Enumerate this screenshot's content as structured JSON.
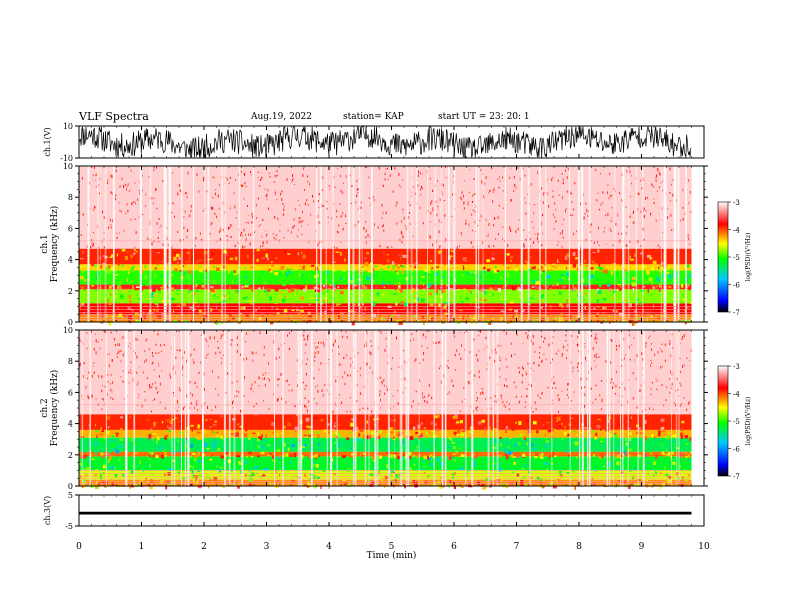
{
  "header": {
    "title": "VLF Spectra",
    "date": "Aug.19, 2022",
    "station": "station= KAP",
    "start": "start  UT  =   23: 20: 1"
  },
  "chart_data": [
    {
      "type": "line",
      "panel": "ch1-waveform",
      "ylabel": "ch.1(V)",
      "ylim": [
        -10,
        10
      ],
      "yticks": [
        "10",
        "-10"
      ],
      "xlim": [
        0,
        10
      ],
      "trend": "dense noisy waveform oscillating roughly between -9 V and +9 V over 0 to 9.8 min"
    },
    {
      "type": "heatmap",
      "panel": "ch1-spectrogram",
      "ylabel": "ch.1 Frequency (kHz)",
      "ylim": [
        0,
        10
      ],
      "yticks": [
        "0",
        "2",
        "4",
        "6",
        "8",
        "10"
      ],
      "xlim": [
        0,
        9.8
      ],
      "bands_kHz": [
        {
          "from": 0.0,
          "to": 0.5,
          "level": -4.2
        },
        {
          "from": 0.5,
          "to": 1.2,
          "level": -3.8
        },
        {
          "from": 1.2,
          "to": 2.1,
          "level": -4.8
        },
        {
          "from": 2.1,
          "to": 2.4,
          "level": -3.7
        },
        {
          "from": 2.4,
          "to": 3.3,
          "level": -5.0
        },
        {
          "from": 3.3,
          "to": 3.7,
          "level": -4.4
        },
        {
          "from": 3.7,
          "to": 4.7,
          "level": -3.9
        },
        {
          "from": 4.7,
          "to": 10.0,
          "level": -3.1
        }
      ],
      "colorbar": {
        "label": "log(PSD)(V²/Hz)",
        "range": [
          -7,
          -3
        ],
        "ticks": [
          "-3",
          "-4",
          "-5",
          "-6",
          "-7"
        ]
      }
    },
    {
      "type": "heatmap",
      "panel": "ch2-spectrogram",
      "ylabel": "ch.2 Frequency (kHz)",
      "ylim": [
        0,
        10
      ],
      "yticks": [
        "0",
        "2",
        "4",
        "6",
        "8",
        "10"
      ],
      "xlim": [
        0,
        9.8
      ],
      "bands_kHz": [
        {
          "from": 0.0,
          "to": 0.4,
          "level": -4.2
        },
        {
          "from": 0.4,
          "to": 1.0,
          "level": -4.6
        },
        {
          "from": 1.0,
          "to": 1.9,
          "level": -5.2
        },
        {
          "from": 1.9,
          "to": 2.2,
          "level": -4.1
        },
        {
          "from": 2.2,
          "to": 3.1,
          "level": -5.3
        },
        {
          "from": 3.1,
          "to": 3.6,
          "level": -4.3
        },
        {
          "from": 3.6,
          "to": 4.6,
          "level": -3.9
        },
        {
          "from": 4.6,
          "to": 10.0,
          "level": -3.1
        }
      ],
      "colorbar": {
        "label": "log(PSD)(V²/Hz)",
        "range": [
          -7,
          -3
        ],
        "ticks": [
          "-3",
          "-4",
          "-5",
          "-6",
          "-7"
        ]
      }
    },
    {
      "type": "line",
      "panel": "ch3-waveform",
      "ylabel": "ch.3(V)",
      "ylim": [
        -5,
        5
      ],
      "yticks": [
        "5",
        "-5"
      ],
      "xlim": [
        0,
        10
      ],
      "trend": "narrow band between about -1.3 V and -0.4 V for the whole interval"
    }
  ],
  "xaxis": {
    "label": "Time (min)",
    "ticks": [
      "0",
      "1",
      "2",
      "3",
      "4",
      "5",
      "6",
      "7",
      "8",
      "9",
      "10"
    ]
  }
}
